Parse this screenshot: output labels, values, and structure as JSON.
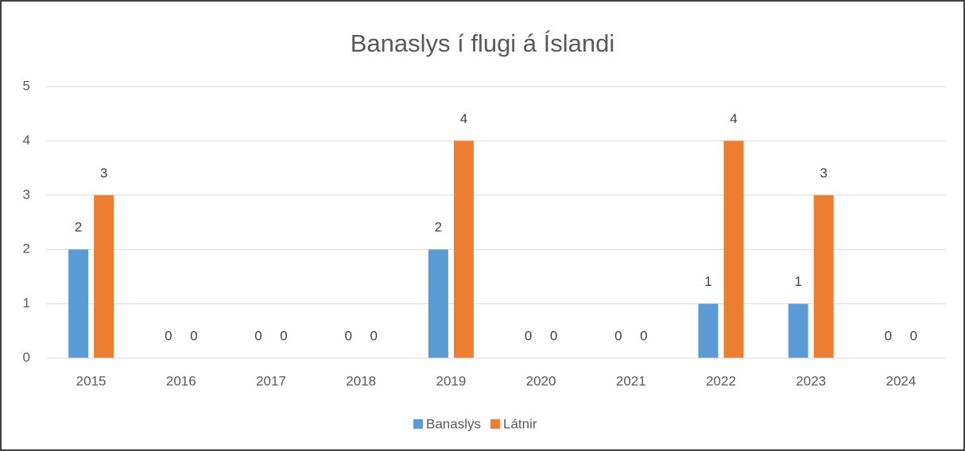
{
  "chart_data": {
    "type": "bar",
    "title": "Banaslys í flugi á Íslandi",
    "categories": [
      "2015",
      "2016",
      "2017",
      "2018",
      "2019",
      "2020",
      "2021",
      "2022",
      "2023",
      "2024"
    ],
    "series": [
      {
        "name": "Banaslys",
        "color": "#5b9bd5",
        "values": [
          2,
          0,
          0,
          0,
          2,
          0,
          0,
          1,
          1,
          0
        ]
      },
      {
        "name": "Látnir",
        "color": "#ed7d31",
        "values": [
          3,
          0,
          0,
          0,
          4,
          0,
          0,
          4,
          3,
          0
        ]
      }
    ],
    "ylim": [
      0,
      5
    ],
    "yticks": [
      0,
      1,
      2,
      3,
      4,
      5
    ],
    "grid": true,
    "legend": "bottom"
  }
}
